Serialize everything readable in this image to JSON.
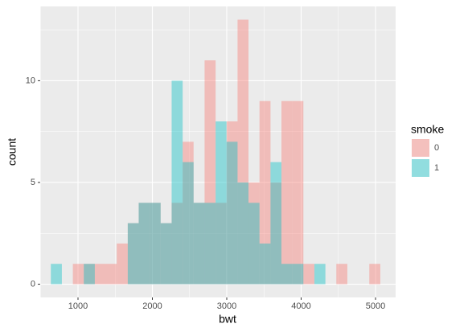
{
  "chart_data": {
    "type": "histogram",
    "x_label": "bwt",
    "y_label": "count",
    "legend_title": "smoke",
    "legend_position": "right",
    "bins": [
      635,
      783,
      931,
      1078,
      1226,
      1373,
      1521,
      1669,
      1816,
      1964,
      2111,
      2259,
      2407,
      2554,
      2702,
      2850,
      2997,
      3145,
      3292,
      3440,
      3588,
      3735,
      3883,
      4030,
      4178,
      4326,
      4473,
      4621,
      4768,
      4916,
      5064
    ],
    "series": [
      {
        "name": "0",
        "color": "#F8766D",
        "values": [
          0,
          0,
          1,
          1,
          1,
          1,
          2,
          3,
          4,
          4,
          3,
          4,
          7,
          4,
          11,
          4,
          8,
          13,
          5,
          9,
          5,
          9,
          9,
          1,
          0,
          0,
          1,
          0,
          0,
          1
        ]
      },
      {
        "name": "1",
        "color": "#00BFC4",
        "values": [
          1,
          0,
          0,
          1,
          0,
          0,
          0,
          3,
          4,
          4,
          3,
          10,
          6,
          4,
          4,
          8,
          7,
          5,
          4,
          2,
          6,
          1,
          1,
          0,
          1,
          0,
          0,
          0,
          0,
          0
        ]
      }
    ],
    "opacity": 0.4,
    "xlim": [
      492,
      5270
    ],
    "xticks": [
      1000,
      2000,
      3000,
      4000,
      5000
    ],
    "xminor": [
      500,
      1500,
      2500,
      3500,
      4500
    ],
    "ylim": [
      -0.65,
      13.65
    ],
    "yticks": [
      0,
      5,
      10
    ],
    "yminor": [
      2.5,
      7.5,
      12.5
    ],
    "grid": true
  }
}
